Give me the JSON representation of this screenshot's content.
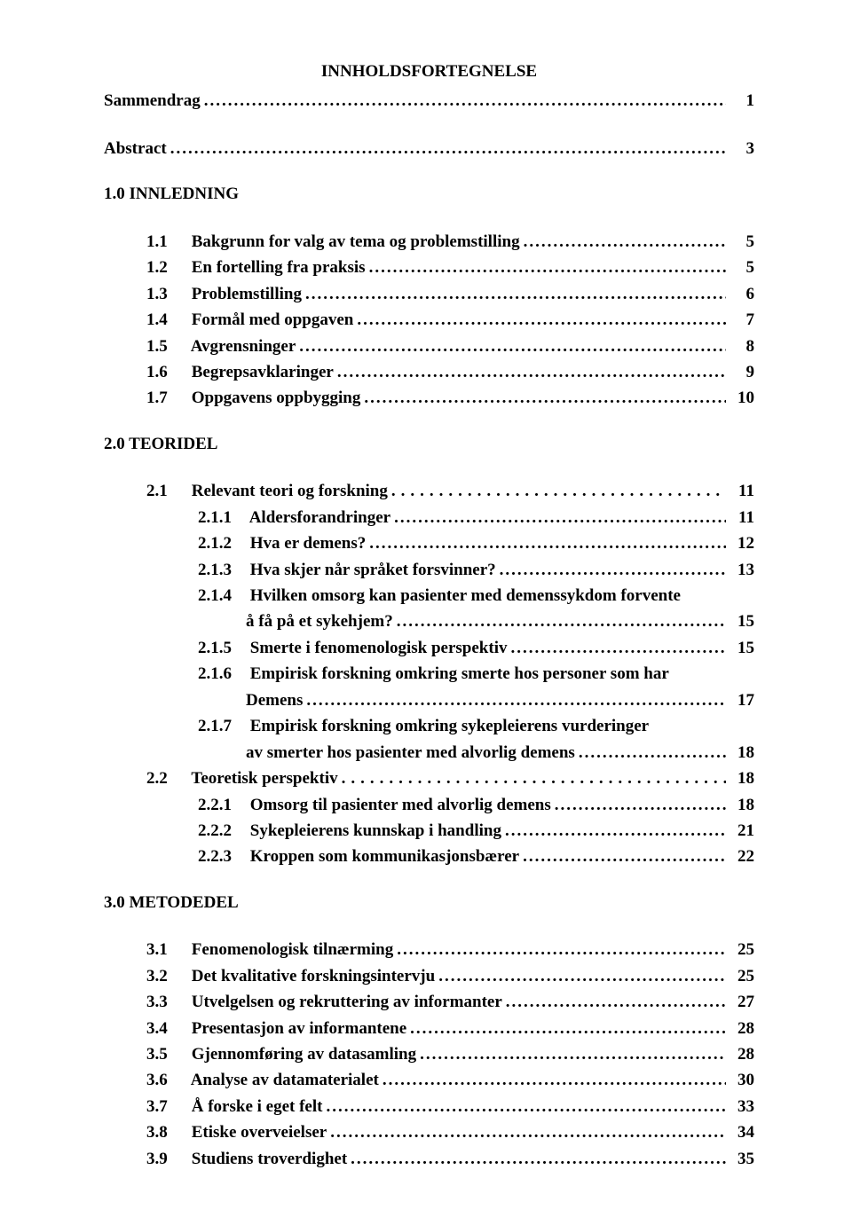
{
  "title": "INNHOLDSFORTEGNELSE",
  "top": [
    {
      "label": "Sammendrag",
      "page": "1"
    },
    {
      "label": "Abstract",
      "page": "3"
    }
  ],
  "chapters": [
    {
      "head": "1.0  INNLEDNING",
      "items": [
        {
          "num": "1.1",
          "text": "Bakgrunn for valg av tema og problemstilling",
          "page": "5"
        },
        {
          "num": "1.2",
          "text": "En fortelling fra praksis",
          "page": "5"
        },
        {
          "num": "1.3",
          "text": "Problemstilling",
          "page": "6"
        },
        {
          "num": "1.4",
          "text": "Formål med oppgaven",
          "page": "7"
        },
        {
          "num": "1.5",
          "text": "Avgrensninger",
          "page": "8"
        },
        {
          "num": "1.6",
          "text": "Begrepsavklaringer",
          "page": "9"
        },
        {
          "num": "1.7",
          "text": "Oppgavens oppbygging",
          "page": "10"
        }
      ]
    },
    {
      "head": "2.0  TEORIDEL",
      "items": [
        {
          "num": "2.1",
          "text": "Relevant teori og forskning",
          "page": "11",
          "leaderWide": true
        },
        {
          "num": "2.1.1",
          "text": "Aldersforandringer",
          "page": "11",
          "sub": true
        },
        {
          "num": "2.1.2",
          "text": "Hva er demens?",
          "page": "12",
          "sub": true
        },
        {
          "num": "2.1.3",
          "text": "Hva skjer når språket forsvinner?",
          "page": "13",
          "sub": true
        },
        {
          "num": "2.1.4",
          "text": "Hvilken omsorg kan pasienter med demenssykdom forvente",
          "sub": true,
          "nopage": true
        },
        {
          "cont": true,
          "text": "å få på et sykehjem?",
          "page": "15"
        },
        {
          "num": "2.1.5",
          "text": "Smerte i fenomenologisk perspektiv",
          "page": "15",
          "sub": true
        },
        {
          "num": "2.1.6",
          "text": "Empirisk forskning omkring smerte hos personer som har",
          "sub": true,
          "nopage": true
        },
        {
          "cont": true,
          "text": "Demens",
          "page": "17"
        },
        {
          "num": "2.1.7",
          "text": "Empirisk forskning omkring sykepleierens vurderinger",
          "sub": true,
          "nopage": true
        },
        {
          "cont": true,
          "text": "av smerter hos pasienter med alvorlig demens",
          "page": "18"
        },
        {
          "num": "2.2",
          "text": "Teoretisk perspektiv",
          "page": "18",
          "leaderWide": true
        },
        {
          "num": "2.2.1",
          "text": "Omsorg til pasienter med alvorlig demens",
          "page": "18",
          "sub": true
        },
        {
          "num": "2.2.2",
          "text": "Sykepleierens kunnskap i handling",
          "page": "21",
          "sub": true
        },
        {
          "num": "2.2.3",
          "text": "Kroppen som kommunikasjonsbærer",
          "page": "22",
          "sub": true
        }
      ]
    },
    {
      "head": "3.0  METODEDEL",
      "items": [
        {
          "num": "3.1",
          "text": "Fenomenologisk tilnærming",
          "page": "25"
        },
        {
          "num": "3.2",
          "text": "Det kvalitative forskningsintervju",
          "page": "25"
        },
        {
          "num": "3.3",
          "text": "Utvelgelsen og rekruttering av informanter",
          "page": "27"
        },
        {
          "num": "3.4",
          "text": "Presentasjon av informantene",
          "page": "28"
        },
        {
          "num": "3.5",
          "text": "Gjennomføring av datasamling",
          "page": "28"
        },
        {
          "num": "3.6",
          "text": "Analyse av datamaterialet",
          "page": "30"
        },
        {
          "num": "3.7",
          "text": "Å forske i eget felt",
          "page": "33"
        },
        {
          "num": "3.8",
          "text": "Etiske overveielser",
          "page": "34"
        },
        {
          "num": "3.9",
          "text": "Studiens troverdighet",
          "page": "35"
        }
      ]
    }
  ]
}
